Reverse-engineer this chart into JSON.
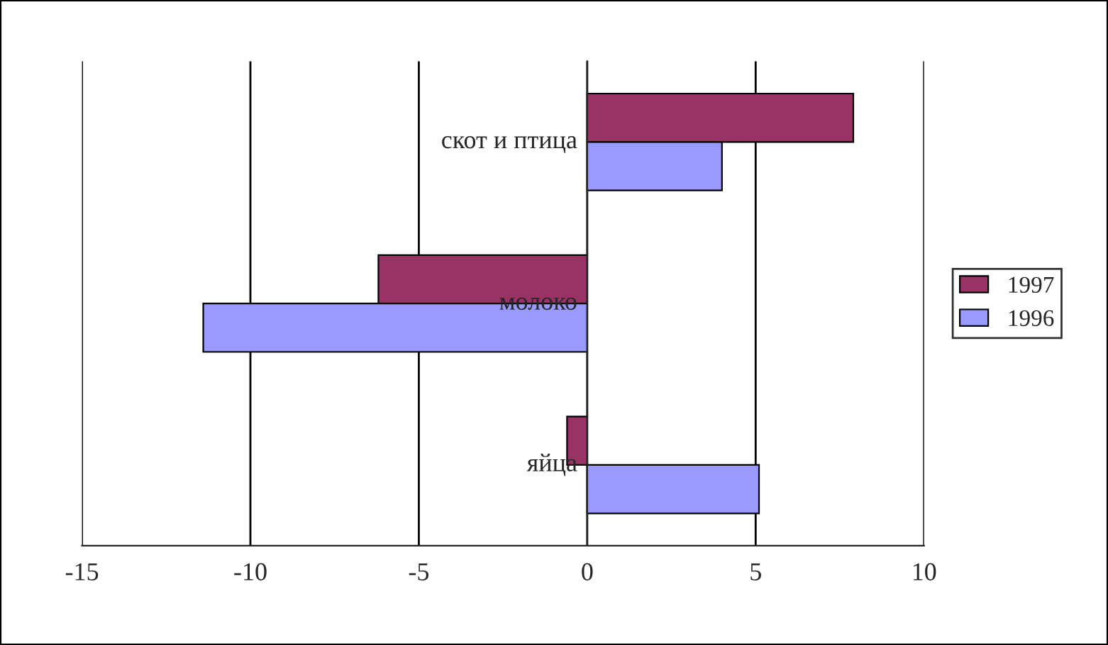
{
  "chart_data": {
    "type": "bar",
    "orientation": "horizontal",
    "categories": [
      "скот и птица",
      "молоко",
      "яйца"
    ],
    "series": [
      {
        "name": "1997",
        "color": "#993366",
        "values": [
          7.9,
          -6.2,
          -0.6
        ]
      },
      {
        "name": "1996",
        "color": "#9999ff",
        "values": [
          4.0,
          -11.4,
          5.1
        ]
      }
    ],
    "xlim": [
      -15,
      10
    ],
    "xticks": [
      -15,
      -10,
      -5,
      0,
      5,
      10
    ],
    "grid": "x",
    "legend": "right"
  }
}
